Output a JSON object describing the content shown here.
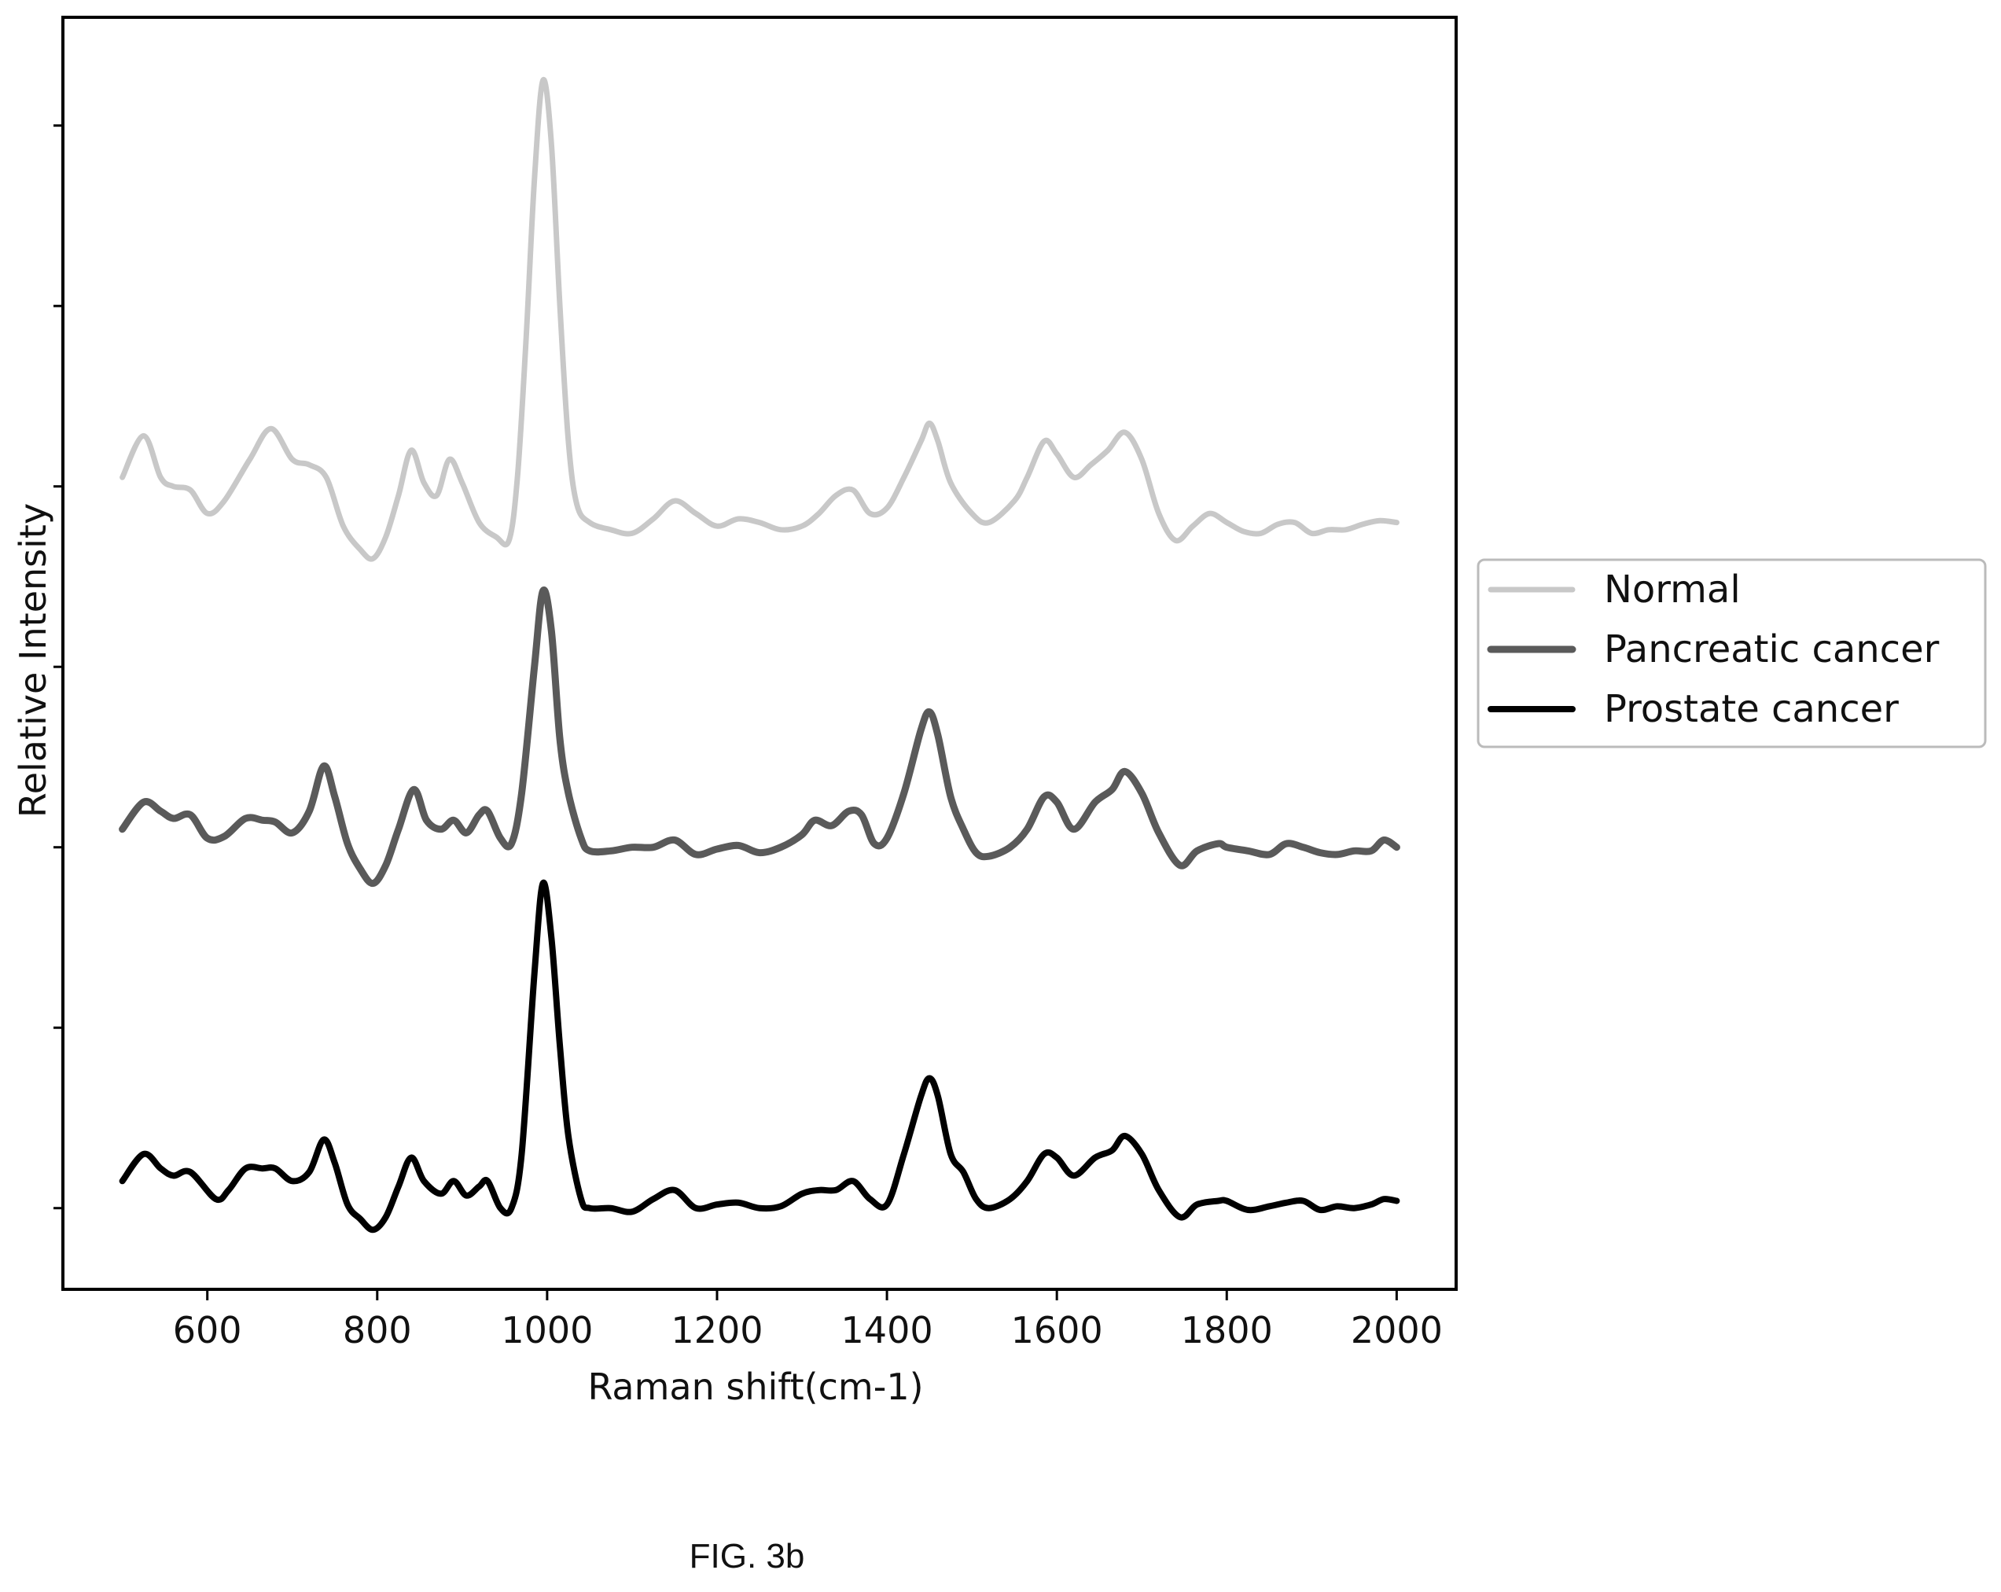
{
  "caption": "FIG. 3b",
  "chart_data": {
    "type": "line",
    "title": "",
    "xlabel": "Raman shift(cm-1)",
    "ylabel": "Relative Intensity",
    "xlim": [
      430,
      2070
    ],
    "ylim": [
      -0.45,
      6.6
    ],
    "x_ticks": [
      600,
      800,
      1000,
      1200,
      1400,
      1600,
      1800,
      2000
    ],
    "y_tick_labels_shown": false,
    "grid": false,
    "legend_position": "outside-right",
    "series": [
      {
        "name": "Normal",
        "color": "#c8c8c8",
        "points": [
          [
            500,
            4.05
          ],
          [
            525,
            4.28
          ],
          [
            545,
            4.05
          ],
          [
            560,
            4.0
          ],
          [
            580,
            3.98
          ],
          [
            600,
            3.85
          ],
          [
            620,
            3.92
          ],
          [
            650,
            4.15
          ],
          [
            675,
            4.32
          ],
          [
            700,
            4.15
          ],
          [
            720,
            4.12
          ],
          [
            740,
            4.05
          ],
          [
            760,
            3.78
          ],
          [
            780,
            3.65
          ],
          [
            795,
            3.6
          ],
          [
            810,
            3.72
          ],
          [
            825,
            3.95
          ],
          [
            840,
            4.2
          ],
          [
            855,
            4.02
          ],
          [
            870,
            3.95
          ],
          [
            885,
            4.15
          ],
          [
            900,
            4.02
          ],
          [
            920,
            3.8
          ],
          [
            940,
            3.72
          ],
          [
            955,
            3.7
          ],
          [
            965,
            4.05
          ],
          [
            975,
            4.8
          ],
          [
            985,
            5.7
          ],
          [
            995,
            6.25
          ],
          [
            1005,
            5.9
          ],
          [
            1015,
            5.0
          ],
          [
            1025,
            4.25
          ],
          [
            1035,
            3.9
          ],
          [
            1050,
            3.8
          ],
          [
            1075,
            3.76
          ],
          [
            1100,
            3.74
          ],
          [
            1125,
            3.82
          ],
          [
            1150,
            3.92
          ],
          [
            1175,
            3.85
          ],
          [
            1200,
            3.78
          ],
          [
            1225,
            3.82
          ],
          [
            1250,
            3.8
          ],
          [
            1275,
            3.76
          ],
          [
            1300,
            3.78
          ],
          [
            1320,
            3.85
          ],
          [
            1340,
            3.95
          ],
          [
            1360,
            3.98
          ],
          [
            1380,
            3.85
          ],
          [
            1400,
            3.88
          ],
          [
            1420,
            4.05
          ],
          [
            1440,
            4.25
          ],
          [
            1450,
            4.35
          ],
          [
            1460,
            4.25
          ],
          [
            1475,
            4.02
          ],
          [
            1500,
            3.85
          ],
          [
            1520,
            3.8
          ],
          [
            1550,
            3.92
          ],
          [
            1565,
            4.05
          ],
          [
            1585,
            4.25
          ],
          [
            1600,
            4.18
          ],
          [
            1620,
            4.05
          ],
          [
            1640,
            4.12
          ],
          [
            1660,
            4.2
          ],
          [
            1680,
            4.3
          ],
          [
            1700,
            4.15
          ],
          [
            1720,
            3.85
          ],
          [
            1740,
            3.7
          ],
          [
            1760,
            3.78
          ],
          [
            1780,
            3.85
          ],
          [
            1800,
            3.8
          ],
          [
            1820,
            3.75
          ],
          [
            1840,
            3.74
          ],
          [
            1860,
            3.79
          ],
          [
            1880,
            3.8
          ],
          [
            1900,
            3.74
          ],
          [
            1920,
            3.76
          ],
          [
            1940,
            3.76
          ],
          [
            1960,
            3.79
          ],
          [
            1980,
            3.81
          ],
          [
            2000,
            3.8
          ]
        ]
      },
      {
        "name": "Pancreatic cancer",
        "color": "#5a5a5a",
        "points": [
          [
            500,
            2.1
          ],
          [
            525,
            2.25
          ],
          [
            545,
            2.2
          ],
          [
            560,
            2.16
          ],
          [
            580,
            2.18
          ],
          [
            600,
            2.05
          ],
          [
            620,
            2.06
          ],
          [
            645,
            2.16
          ],
          [
            665,
            2.15
          ],
          [
            680,
            2.14
          ],
          [
            700,
            2.08
          ],
          [
            720,
            2.2
          ],
          [
            737,
            2.45
          ],
          [
            750,
            2.28
          ],
          [
            765,
            2.02
          ],
          [
            780,
            1.88
          ],
          [
            795,
            1.8
          ],
          [
            810,
            1.9
          ],
          [
            825,
            2.1
          ],
          [
            843,
            2.32
          ],
          [
            858,
            2.15
          ],
          [
            875,
            2.1
          ],
          [
            890,
            2.15
          ],
          [
            905,
            2.08
          ],
          [
            920,
            2.18
          ],
          [
            930,
            2.2
          ],
          [
            945,
            2.05
          ],
          [
            958,
            2.02
          ],
          [
            970,
            2.3
          ],
          [
            985,
            3.0
          ],
          [
            995,
            3.42
          ],
          [
            1005,
            3.2
          ],
          [
            1015,
            2.6
          ],
          [
            1025,
            2.3
          ],
          [
            1040,
            2.05
          ],
          [
            1050,
            1.98
          ],
          [
            1075,
            1.98
          ],
          [
            1100,
            2.0
          ],
          [
            1125,
            2.0
          ],
          [
            1150,
            2.04
          ],
          [
            1175,
            1.96
          ],
          [
            1200,
            1.99
          ],
          [
            1225,
            2.01
          ],
          [
            1250,
            1.97
          ],
          [
            1275,
            2.0
          ],
          [
            1300,
            2.07
          ],
          [
            1315,
            2.15
          ],
          [
            1335,
            2.12
          ],
          [
            1355,
            2.2
          ],
          [
            1370,
            2.18
          ],
          [
            1385,
            2.02
          ],
          [
            1400,
            2.05
          ],
          [
            1420,
            2.3
          ],
          [
            1440,
            2.65
          ],
          [
            1450,
            2.75
          ],
          [
            1460,
            2.62
          ],
          [
            1475,
            2.28
          ],
          [
            1490,
            2.1
          ],
          [
            1505,
            1.97
          ],
          [
            1520,
            1.95
          ],
          [
            1545,
            2.0
          ],
          [
            1565,
            2.1
          ],
          [
            1585,
            2.28
          ],
          [
            1600,
            2.25
          ],
          [
            1620,
            2.1
          ],
          [
            1645,
            2.25
          ],
          [
            1665,
            2.32
          ],
          [
            1680,
            2.42
          ],
          [
            1700,
            2.3
          ],
          [
            1720,
            2.08
          ],
          [
            1745,
            1.9
          ],
          [
            1765,
            1.98
          ],
          [
            1790,
            2.02
          ],
          [
            1800,
            2.0
          ],
          [
            1825,
            1.98
          ],
          [
            1850,
            1.96
          ],
          [
            1870,
            2.02
          ],
          [
            1890,
            2.0
          ],
          [
            1910,
            1.97
          ],
          [
            1930,
            1.96
          ],
          [
            1950,
            1.98
          ],
          [
            1970,
            1.98
          ],
          [
            1985,
            2.04
          ],
          [
            2000,
            2.0
          ]
        ]
      },
      {
        "name": "Prostate cancer",
        "color": "#000000",
        "points": [
          [
            500,
            0.15
          ],
          [
            525,
            0.3
          ],
          [
            545,
            0.22
          ],
          [
            560,
            0.18
          ],
          [
            580,
            0.2
          ],
          [
            610,
            0.05
          ],
          [
            625,
            0.1
          ],
          [
            645,
            0.22
          ],
          [
            665,
            0.22
          ],
          [
            680,
            0.22
          ],
          [
            700,
            0.15
          ],
          [
            720,
            0.2
          ],
          [
            737,
            0.38
          ],
          [
            750,
            0.25
          ],
          [
            765,
            0.02
          ],
          [
            780,
            -0.06
          ],
          [
            795,
            -0.12
          ],
          [
            810,
            -0.05
          ],
          [
            825,
            0.12
          ],
          [
            840,
            0.28
          ],
          [
            855,
            0.15
          ],
          [
            875,
            0.08
          ],
          [
            890,
            0.15
          ],
          [
            905,
            0.07
          ],
          [
            920,
            0.12
          ],
          [
            930,
            0.15
          ],
          [
            945,
            0.0
          ],
          [
            958,
            0.0
          ],
          [
            970,
            0.3
          ],
          [
            985,
            1.3
          ],
          [
            995,
            1.8
          ],
          [
            1005,
            1.5
          ],
          [
            1015,
            0.9
          ],
          [
            1025,
            0.4
          ],
          [
            1040,
            0.05
          ],
          [
            1050,
            0.0
          ],
          [
            1075,
            0.0
          ],
          [
            1100,
            -0.02
          ],
          [
            1125,
            0.05
          ],
          [
            1150,
            0.1
          ],
          [
            1175,
            0.0
          ],
          [
            1200,
            0.02
          ],
          [
            1225,
            0.03
          ],
          [
            1250,
            0.0
          ],
          [
            1275,
            0.01
          ],
          [
            1300,
            0.08
          ],
          [
            1320,
            0.1
          ],
          [
            1340,
            0.1
          ],
          [
            1360,
            0.15
          ],
          [
            1380,
            0.05
          ],
          [
            1400,
            0.02
          ],
          [
            1420,
            0.3
          ],
          [
            1440,
            0.62
          ],
          [
            1450,
            0.72
          ],
          [
            1460,
            0.62
          ],
          [
            1475,
            0.3
          ],
          [
            1490,
            0.2
          ],
          [
            1505,
            0.05
          ],
          [
            1520,
            0.0
          ],
          [
            1545,
            0.05
          ],
          [
            1565,
            0.15
          ],
          [
            1585,
            0.3
          ],
          [
            1600,
            0.28
          ],
          [
            1620,
            0.18
          ],
          [
            1645,
            0.28
          ],
          [
            1665,
            0.32
          ],
          [
            1680,
            0.4
          ],
          [
            1700,
            0.3
          ],
          [
            1720,
            0.1
          ],
          [
            1745,
            -0.05
          ],
          [
            1765,
            0.02
          ],
          [
            1790,
            0.04
          ],
          [
            1800,
            0.04
          ],
          [
            1825,
            -0.01
          ],
          [
            1850,
            0.01
          ],
          [
            1870,
            0.03
          ],
          [
            1890,
            0.04
          ],
          [
            1910,
            -0.01
          ],
          [
            1930,
            0.01
          ],
          [
            1950,
            0.0
          ],
          [
            1970,
            0.02
          ],
          [
            1985,
            0.05
          ],
          [
            2000,
            0.04
          ]
        ]
      }
    ]
  }
}
